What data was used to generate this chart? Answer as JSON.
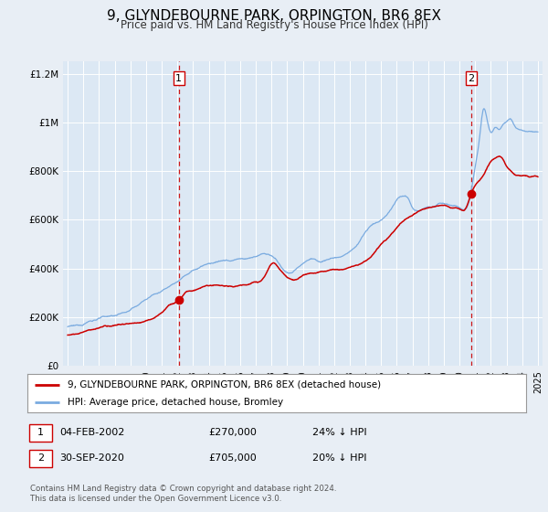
{
  "title": "9, GLYNDEBOURNE PARK, ORPINGTON, BR6 8EX",
  "subtitle": "Price paid vs. HM Land Registry's House Price Index (HPI)",
  "bg_color": "#e8eef5",
  "plot_bg_color": "#dce8f4",
  "red_color": "#cc0000",
  "blue_color": "#7aabe0",
  "marker1_date_x": 2002.09,
  "marker1_y": 270000,
  "marker2_date_x": 2020.75,
  "marker2_y": 705000,
  "legend_line1": "9, GLYNDEBOURNE PARK, ORPINGTON, BR6 8EX (detached house)",
  "legend_line2": "HPI: Average price, detached house, Bromley",
  "annotation1_label": "1",
  "annotation1_date": "04-FEB-2002",
  "annotation1_price": "£270,000",
  "annotation1_hpi": "24% ↓ HPI",
  "annotation2_label": "2",
  "annotation2_date": "30-SEP-2020",
  "annotation2_price": "£705,000",
  "annotation2_hpi": "20% ↓ HPI",
  "footer1": "Contains HM Land Registry data © Crown copyright and database right 2024.",
  "footer2": "This data is licensed under the Open Government Licence v3.0.",
  "ylim_max": 1250000,
  "xlim_min": 1994.7,
  "xlim_max": 2025.3,
  "yticks": [
    0,
    200000,
    400000,
    600000,
    800000,
    1000000,
    1200000
  ],
  "ylabels": [
    "£0",
    "£200K",
    "£400K",
    "£600K",
    "£800K",
    "£1M",
    "£1.2M"
  ]
}
